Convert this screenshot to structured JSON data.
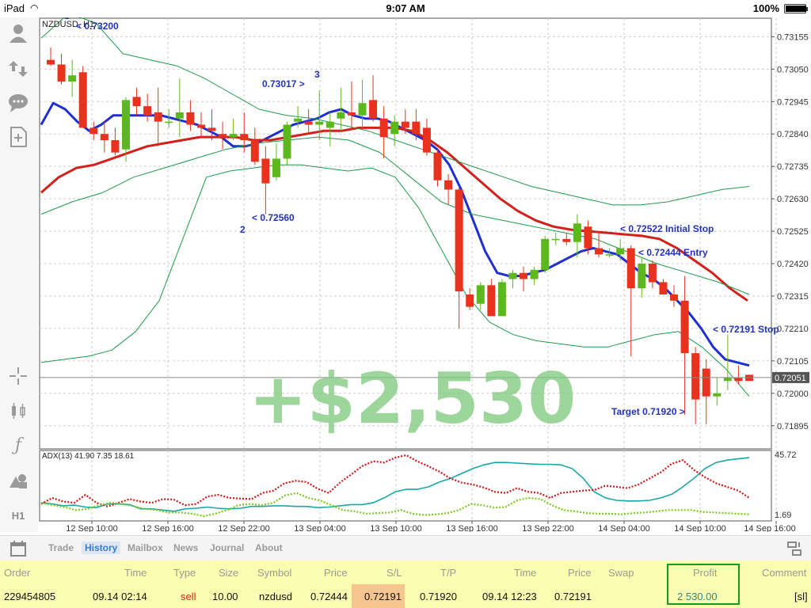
{
  "status_bar": {
    "device": "iPad",
    "time": "9:07 AM",
    "battery": "100%",
    "battery_level": 1.0
  },
  "sidebar": {
    "icons": [
      "account-icon",
      "trade-icon",
      "chat-icon",
      "new-document-icon",
      "crosshair-icon",
      "chart-type-icon",
      "indicators-icon",
      "objects-icon"
    ],
    "timeframe": "H1"
  },
  "chart_data": {
    "type": "candlestick",
    "symbol_label": "NZDUSD, H1",
    "ylim": [
      0.7182,
      0.73215
    ],
    "price_ticks": [
      "0.73155",
      "0.73050",
      "0.72945",
      "0.72840",
      "0.72735",
      "0.72630",
      "0.72525",
      "0.72420",
      "0.72315",
      "0.72210",
      "0.72105",
      "0.72000",
      "0.71895"
    ],
    "current_price": "0.72051",
    "time_labels": [
      "12 Sep 10:00",
      "12 Sep 16:00",
      "12 Sep 22:00",
      "13 Sep 04:00",
      "13 Sep 10:00",
      "13 Sep 16:00",
      "13 Sep 22:00",
      "14 Sep 04:00",
      "14 Sep 10:00",
      "14 Sep 16:00"
    ],
    "candles": [
      [
        0.7308,
        0.7312,
        0.7306,
        0.73065
      ],
      [
        0.73065,
        0.731,
        0.73,
        0.7301
      ],
      [
        0.7301,
        0.7308,
        0.7296,
        0.7303
      ],
      [
        0.7304,
        0.7306,
        0.7286,
        0.7286
      ],
      [
        0.7286,
        0.7288,
        0.7282,
        0.7284
      ],
      [
        0.7284,
        0.7288,
        0.7278,
        0.7282
      ],
      [
        0.7282,
        0.7286,
        0.7277,
        0.7278
      ],
      [
        0.7279,
        0.7296,
        0.7275,
        0.7295
      ],
      [
        0.7296,
        0.7299,
        0.729,
        0.7293
      ],
      [
        0.7293,
        0.7297,
        0.7288,
        0.729
      ],
      [
        0.7291,
        0.7299,
        0.728,
        0.7288
      ],
      [
        0.7288,
        0.7292,
        0.7286,
        0.7288
      ],
      [
        0.7289,
        0.7302,
        0.7283,
        0.7291
      ],
      [
        0.7291,
        0.7295,
        0.7285,
        0.7287
      ],
      [
        0.7287,
        0.7291,
        0.7283,
        0.7286
      ],
      [
        0.7286,
        0.7292,
        0.7282,
        0.7285
      ],
      [
        0.7284,
        0.7288,
        0.7279,
        0.7283
      ],
      [
        0.7283,
        0.7289,
        0.7282,
        0.7284
      ],
      [
        0.7284,
        0.7291,
        0.7278,
        0.7282
      ],
      [
        0.7282,
        0.7286,
        0.7274,
        0.7275
      ],
      [
        0.7276,
        0.728,
        0.7258,
        0.7268
      ],
      [
        0.727,
        0.7281,
        0.7269,
        0.7276
      ],
      [
        0.7276,
        0.7288,
        0.7274,
        0.7287
      ],
      [
        0.7288,
        0.7293,
        0.7286,
        0.7289
      ],
      [
        0.7288,
        0.7292,
        0.7284,
        0.7287
      ],
      [
        0.7287,
        0.7298,
        0.7282,
        0.7288
      ],
      [
        0.7286,
        0.7291,
        0.728,
        0.7288
      ],
      [
        0.7289,
        0.7299,
        0.7285,
        0.7291
      ],
      [
        0.7291,
        0.7301,
        0.7286,
        0.729
      ],
      [
        0.729,
        0.73015,
        0.7286,
        0.7294
      ],
      [
        0.7295,
        0.7303,
        0.7288,
        0.7289
      ],
      [
        0.7289,
        0.7293,
        0.7276,
        0.7283
      ],
      [
        0.7284,
        0.729,
        0.728,
        0.7288
      ],
      [
        0.7288,
        0.7292,
        0.7284,
        0.7286
      ],
      [
        0.7288,
        0.7292,
        0.7282,
        0.7284
      ],
      [
        0.7286,
        0.7289,
        0.7277,
        0.7278
      ],
      [
        0.7278,
        0.7279,
        0.7267,
        0.7269
      ],
      [
        0.7269,
        0.7271,
        0.7261,
        0.7266
      ],
      [
        0.7266,
        0.7267,
        0.7221,
        0.7233
      ],
      [
        0.7232,
        0.7234,
        0.7227,
        0.7228
      ],
      [
        0.7229,
        0.7236,
        0.7227,
        0.7235
      ],
      [
        0.7235,
        0.7237,
        0.7225,
        0.7225
      ],
      [
        0.7225,
        0.7237,
        0.7225,
        0.7236
      ],
      [
        0.7237,
        0.724,
        0.7234,
        0.7239
      ],
      [
        0.7239,
        0.7241,
        0.7233,
        0.7237
      ],
      [
        0.7237,
        0.7241,
        0.7235,
        0.724
      ],
      [
        0.724,
        0.7251,
        0.7239,
        0.725
      ],
      [
        0.725,
        0.7252,
        0.7248,
        0.725
      ],
      [
        0.725,
        0.7252,
        0.7248,
        0.7249
      ],
      [
        0.7249,
        0.7258,
        0.7244,
        0.7255
      ],
      [
        0.7254,
        0.7256,
        0.7245,
        0.7247
      ],
      [
        0.7247,
        0.7252,
        0.7244,
        0.7245
      ],
      [
        0.7245,
        0.7247,
        0.7244,
        0.7245
      ],
      [
        0.7245,
        0.725,
        0.7243,
        0.7247
      ],
      [
        0.7247,
        0.7248,
        0.7212,
        0.7234
      ],
      [
        0.7234,
        0.7244,
        0.7231,
        0.7242
      ],
      [
        0.7242,
        0.7243,
        0.7234,
        0.7236
      ],
      [
        0.7236,
        0.7237,
        0.7232,
        0.7232
      ],
      [
        0.7232,
        0.7235,
        0.7228,
        0.723
      ],
      [
        0.723,
        0.7238,
        0.7193,
        0.7213
      ],
      [
        0.7213,
        0.7215,
        0.719,
        0.7198
      ],
      [
        0.7208,
        0.7211,
        0.719,
        0.7199
      ],
      [
        0.7199,
        0.7205,
        0.7196,
        0.72
      ],
      [
        0.7204,
        0.7219,
        0.7201,
        0.7205
      ],
      [
        0.7205,
        0.7209,
        0.7203,
        0.7204
      ],
      [
        0.7206,
        0.7206,
        0.7204,
        0.7204
      ]
    ],
    "series": [
      {
        "name": "",
        "color": "#1f2fd0",
        "values": [
          0.7287,
          0.7294,
          0.7292,
          0.7288,
          0.7285,
          0.7287,
          0.729,
          0.729,
          0.729,
          0.729,
          0.729,
          0.7289,
          0.7288,
          0.7287,
          0.7285,
          0.7283,
          0.728,
          0.728,
          0.7281,
          0.7283,
          0.7285,
          0.7287,
          0.7288,
          0.7289,
          0.7291,
          0.7292,
          0.729,
          0.7289,
          0.7289,
          0.7288,
          0.7286,
          0.7284,
          0.7282,
          0.7279,
          0.7274,
          0.7266,
          0.7256,
          0.7246,
          0.7239,
          0.7238,
          0.7238,
          0.7239,
          0.724,
          0.7242,
          0.7244,
          0.7246,
          0.7247,
          0.7246,
          0.7245,
          0.7242,
          0.7239,
          0.7237,
          0.7234,
          0.723,
          0.7226,
          0.7221,
          0.7215,
          0.7211,
          0.721,
          0.7209
        ]
      },
      {
        "name": "",
        "color": "#d4201b",
        "values": [
          0.7265,
          0.727,
          0.7273,
          0.7274,
          0.7276,
          0.7278,
          0.728,
          0.7281,
          0.7282,
          0.7283,
          0.7283,
          0.7283,
          0.7282,
          0.7282,
          0.7283,
          0.7284,
          0.7285,
          0.7285,
          0.7286,
          0.7286,
          0.7286,
          0.7285,
          0.7282,
          0.7278,
          0.7273,
          0.7268,
          0.7263,
          0.7259,
          0.7256,
          0.7254,
          0.7253,
          0.72525,
          0.7252,
          0.72515,
          0.7251,
          0.725,
          0.7247,
          0.7243,
          0.7239,
          0.7234,
          0.723
        ]
      },
      {
        "name": "",
        "color": "#1e9a4a",
        "values": [
          0.7315,
          0.7323,
          0.732,
          0.731,
          0.7308,
          0.7306,
          0.7302,
          0.7297,
          0.7292,
          0.729,
          0.7289,
          0.7287,
          0.7285,
          0.7282,
          0.7279,
          0.7276,
          0.7273,
          0.727,
          0.7267,
          0.7265,
          0.7263,
          0.7261,
          0.7261,
          0.7262,
          0.7264,
          0.7266,
          0.7267
        ]
      },
      {
        "name": "",
        "color": "#1e9a4a",
        "values": [
          0.7258,
          0.7262,
          0.7265,
          0.727,
          0.7273,
          0.7276,
          0.7279,
          0.7281,
          0.7282,
          0.7283,
          0.7282,
          0.7278,
          0.727,
          0.7262,
          0.7258,
          0.7256,
          0.7254,
          0.7252,
          0.725,
          0.7246,
          0.7242,
          0.7239,
          0.7236,
          0.7232
        ]
      },
      {
        "name": "",
        "color": "#1e9a4a",
        "values": [
          0.721,
          0.7211,
          0.7212,
          0.7214,
          0.722,
          0.723,
          0.725,
          0.727,
          0.7272,
          0.7273,
          0.7274,
          0.7274,
          0.7273,
          0.7272,
          0.7273,
          0.727,
          0.726,
          0.7246,
          0.7232,
          0.7223,
          0.7219,
          0.7217,
          0.7216,
          0.7215,
          0.7215,
          0.7217,
          0.7219,
          0.722,
          0.7215,
          0.7208,
          0.7199
        ]
      }
    ],
    "annotations": [
      {
        "text": "1",
        "color": "#2233bb"
      },
      {
        "text": "< 0.73200",
        "color": "#2233bb"
      },
      {
        "text": "0.73017 >",
        "color": "#2233bb"
      },
      {
        "text": "3",
        "color": "#2233bb"
      },
      {
        "text": "< 0.72560",
        "color": "#2233bb"
      },
      {
        "text": "2",
        "color": "#2233bb"
      },
      {
        "text": "< 0.72522 Initial Stop",
        "color": "#2233bb"
      },
      {
        "text": "< 0.72444 Entry",
        "color": "#2233bb"
      },
      {
        "text": "< 0.72191 Stop",
        "color": "#2233bb"
      },
      {
        "text": "Target 0.71920 >",
        "color": "#2233bb"
      }
    ],
    "profit_overlay": "+$2,530",
    "adx": {
      "label": "ADX(13) 41.90 7.35 18.61",
      "ymax": "45.72",
      "ymin": "1.69",
      "series": [
        {
          "name": "",
          "color": "#1aa6a6",
          "values": [
            0.22,
            0.2,
            0.17,
            0.18,
            0.15,
            0.14,
            0.2,
            0.2,
            0.19,
            0.12,
            0.12,
            0.1,
            0.08,
            0.12,
            0.13,
            0.15,
            0.13,
            0.12,
            0.13,
            0.16,
            0.16,
            0.17,
            0.17,
            0.16,
            0.16,
            0.14,
            0.15,
            0.17,
            0.19,
            0.19,
            0.22,
            0.3,
            0.4,
            0.44,
            0.44,
            0.48,
            0.56,
            0.62,
            0.7,
            0.78,
            0.84,
            0.88,
            0.88,
            0.87,
            0.86,
            0.85,
            0.85,
            0.84,
            0.78,
            0.62,
            0.4,
            0.3,
            0.26,
            0.25,
            0.25,
            0.26,
            0.3,
            0.36,
            0.48,
            0.62,
            0.78,
            0.88,
            0.92,
            0.94,
            0.96
          ]
        },
        {
          "name": "",
          "color": "#cc1818",
          "values": [
            0.2,
            0.3,
            0.24,
            0.22,
            0.35,
            0.22,
            0.16,
            0.22,
            0.28,
            0.24,
            0.22,
            0.28,
            0.27,
            0.18,
            0.2,
            0.32,
            0.35,
            0.3,
            0.29,
            0.28,
            0.38,
            0.42,
            0.54,
            0.58,
            0.56,
            0.45,
            0.38,
            0.55,
            0.68,
            0.82,
            0.9,
            0.88,
            0.96,
            1.0,
            0.9,
            0.82,
            0.73,
            0.62,
            0.55,
            0.52,
            0.47,
            0.4,
            0.38,
            0.46,
            0.4,
            0.38,
            0.3,
            0.38,
            0.4,
            0.42,
            0.43,
            0.5,
            0.48,
            0.46,
            0.52,
            0.62,
            0.72,
            0.86,
            0.92,
            0.76,
            0.64,
            0.54,
            0.48,
            0.42,
            0.3
          ]
        },
        {
          "name": "",
          "color": "#7ac81e",
          "values": [
            0.22,
            0.18,
            0.15,
            0.1,
            0.12,
            0.18,
            0.22,
            0.2,
            0.16,
            0.12,
            0.1,
            0.06,
            0.06,
            0.04,
            0.0,
            0.04,
            0.1,
            0.18,
            0.2,
            0.18,
            0.22,
            0.34,
            0.38,
            0.3,
            0.26,
            0.18,
            0.1,
            0.08,
            0.04,
            0.05,
            0.06,
            0.1,
            0.04,
            0.02,
            0.03,
            0.05,
            0.1,
            0.2,
            0.18,
            0.14,
            0.15,
            0.26,
            0.3,
            0.28,
            0.18,
            0.1,
            0.08,
            0.05,
            0.04,
            0.04,
            0.03,
            0.05,
            0.06,
            0.08,
            0.1,
            0.1,
            0.1,
            0.07,
            0.06,
            0.05,
            0.04,
            0.03
          ]
        }
      ]
    }
  },
  "bottom_toolbar": {
    "tabs": [
      "Trade",
      "History",
      "Mailbox",
      "News",
      "Journal",
      "About"
    ],
    "active_tab": "History"
  },
  "history_table": {
    "headers": [
      "Order",
      "Time",
      "Type",
      "Size",
      "Symbol",
      "Price",
      "S/L",
      "T/P",
      "Time",
      "Price",
      "Swap",
      "Profit",
      "Comment"
    ],
    "row": [
      "229454805",
      "09.14 02:14",
      "sell",
      "10.00",
      "nzdusd",
      "0.72444",
      "0.72191",
      "0.71920",
      "09.14 12:23",
      "0.72191",
      "",
      "2 530.00",
      "[sl]"
    ]
  }
}
